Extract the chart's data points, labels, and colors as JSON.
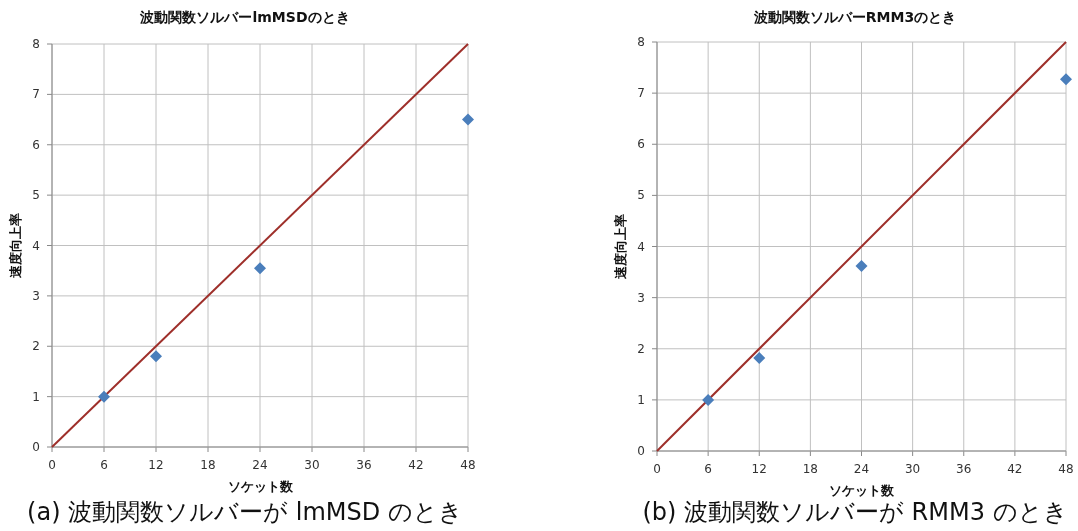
{
  "chart_data": [
    {
      "type": "scatter",
      "title": "波動関数ソルバーlmMSDのとき",
      "xlabel": "ソケット数",
      "ylabel": "速度向上率",
      "xlim": [
        0,
        48
      ],
      "ylim": [
        0,
        8
      ],
      "xticks": [
        0,
        6,
        12,
        18,
        24,
        30,
        36,
        42,
        48
      ],
      "yticks": [
        0,
        1,
        2,
        3,
        4,
        5,
        6,
        7,
        8
      ],
      "grid": true,
      "series": [
        {
          "type": "line",
          "color": "#9e2f2a",
          "x": [
            0,
            48
          ],
          "values": [
            0,
            8
          ]
        },
        {
          "color": "#4a7ebb",
          "marker": "diamond",
          "x": [
            6,
            12,
            24,
            48
          ],
          "values": [
            1.0,
            1.8,
            3.55,
            6.5
          ]
        }
      ],
      "annotations": [
        "(a) 波動関数ソルバーが lmMSD のとき"
      ]
    },
    {
      "type": "scatter",
      "title": "波動関数ソルバーRMM3のとき",
      "xlabel": "ソケット数",
      "ylabel": "速度向上率",
      "xlim": [
        0,
        48
      ],
      "ylim": [
        0,
        8
      ],
      "xticks": [
        0,
        6,
        12,
        18,
        24,
        30,
        36,
        42,
        48
      ],
      "yticks": [
        0,
        1,
        2,
        3,
        4,
        5,
        6,
        7,
        8
      ],
      "grid": true,
      "series": [
        {
          "type": "line",
          "color": "#9e2f2a",
          "x": [
            0,
            48
          ],
          "values": [
            0,
            8
          ]
        },
        {
          "color": "#4a7ebb",
          "marker": "diamond",
          "x": [
            6,
            12,
            24,
            48
          ],
          "values": [
            1.0,
            1.82,
            3.62,
            7.27
          ]
        }
      ],
      "annotations": [
        "(b) 波動関数ソルバーが RMM3 のとき"
      ]
    }
  ]
}
